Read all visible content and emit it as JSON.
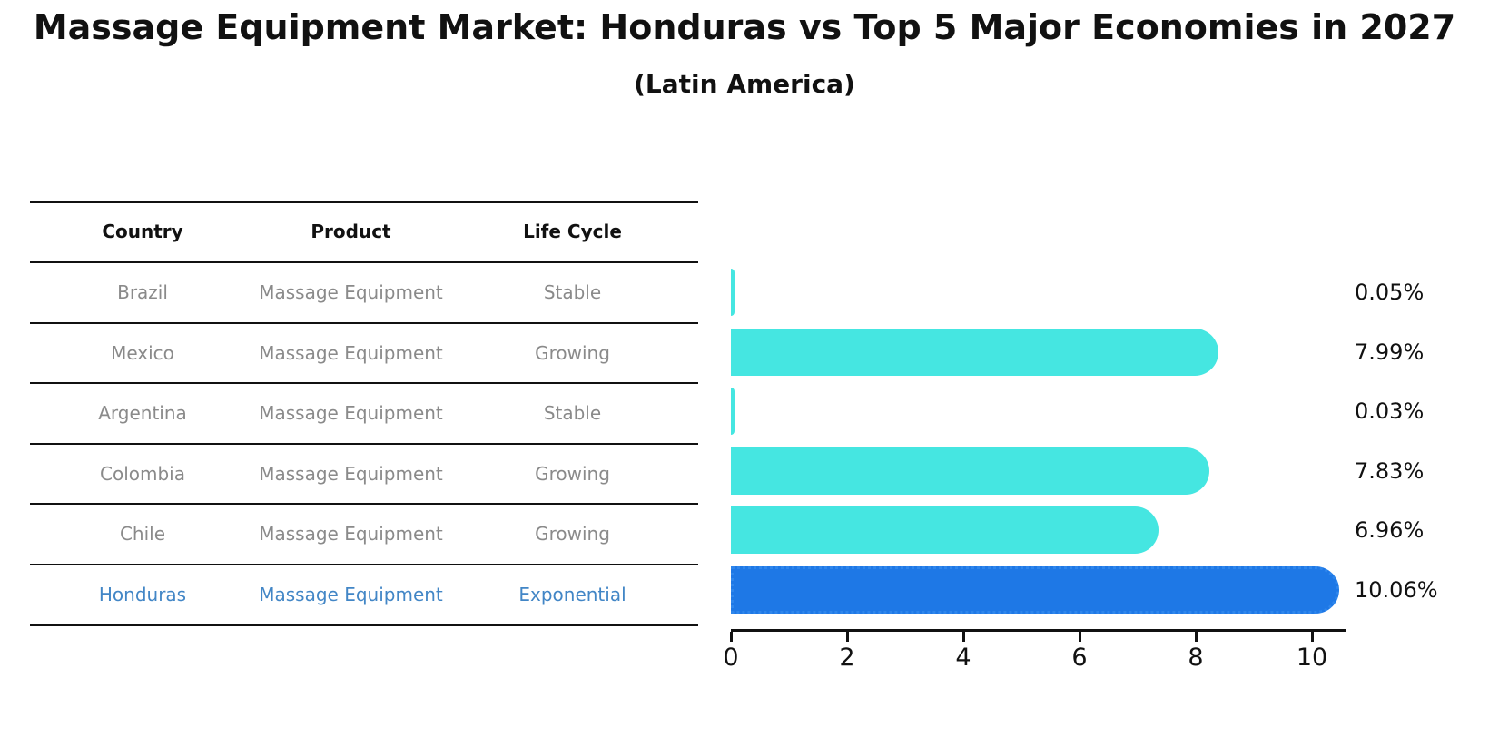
{
  "title": "Massage Equipment Market: Honduras vs Top 5 Major Economies in 2027",
  "subtitle": "(Latin America)",
  "table": {
    "headers": [
      "Country",
      "Product",
      "Life Cycle"
    ],
    "rows": [
      {
        "country": "Brazil",
        "product": "Massage Equipment",
        "life_cycle": "Stable",
        "highlight": false
      },
      {
        "country": "Mexico",
        "product": "Massage Equipment",
        "life_cycle": "Growing",
        "highlight": false
      },
      {
        "country": "Argentina",
        "product": "Massage Equipment",
        "life_cycle": "Stable",
        "highlight": false
      },
      {
        "country": "Colombia",
        "product": "Massage Equipment",
        "life_cycle": "Growing",
        "highlight": false
      },
      {
        "country": "Chile",
        "product": "Massage Equipment",
        "life_cycle": "Growing",
        "highlight": false
      },
      {
        "country": "Honduras",
        "product": "Massage Equipment",
        "life_cycle": "Exponential",
        "highlight": true
      }
    ]
  },
  "chart_data": {
    "type": "bar",
    "orientation": "horizontal",
    "categories": [
      "Brazil",
      "Mexico",
      "Argentina",
      "Colombia",
      "Chile",
      "Honduras"
    ],
    "values": [
      0.05,
      7.99,
      0.03,
      7.83,
      6.96,
      10.06
    ],
    "value_labels": [
      "0.05%",
      "7.99%",
      "0.03%",
      "7.83%",
      "6.96%",
      "10.06%"
    ],
    "x_ticks": [
      "0",
      "2",
      "4",
      "6",
      "8",
      "10"
    ],
    "x_tick_values": [
      0,
      2,
      4,
      6,
      8,
      10
    ],
    "xlim": [
      0,
      10.6
    ],
    "grid": false,
    "legend": "none",
    "bar_color": "#45E6E1",
    "highlight_bar_color": "#1E78E6",
    "highlight_index": 5,
    "value_label_position": "right-outside",
    "title": "Massage Equipment Market: Honduras vs Top 5 Major Economies in 2027",
    "subtitle": "(Latin America)"
  },
  "colors": {
    "bar_cyan": "#45E6E1",
    "bar_blue": "#1E78E6",
    "highlight_text_blue": "#4286C6",
    "table_text_gray": "#8a8a8a",
    "ink": "#111111"
  }
}
